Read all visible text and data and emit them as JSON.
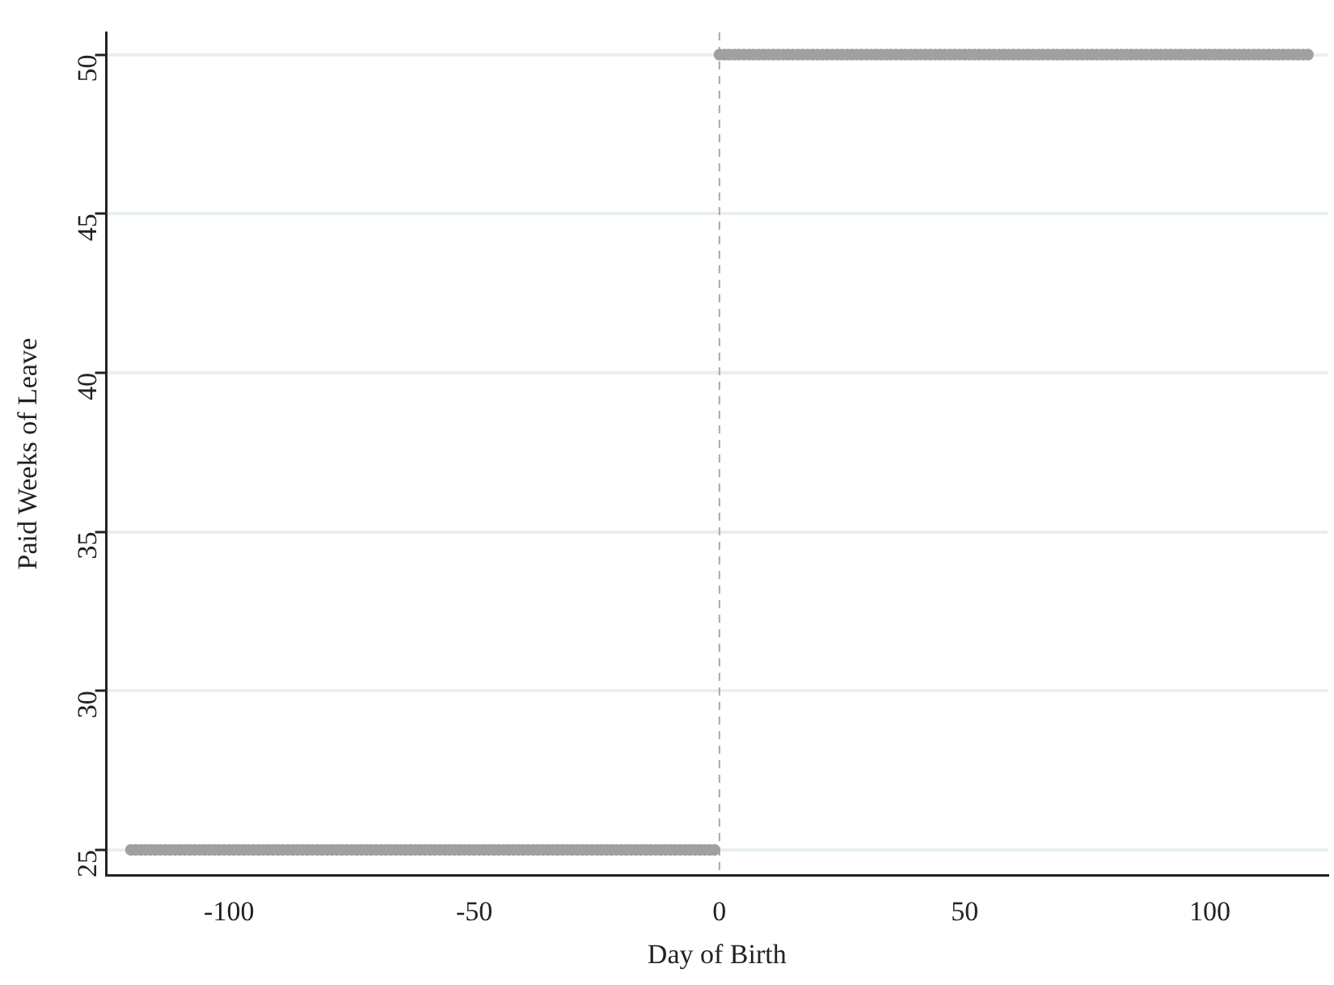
{
  "chart_data": {
    "type": "scatter",
    "xlabel": "Day of Birth",
    "ylabel": "Paid Weeks of Leave",
    "xlim": [
      -125,
      124
    ],
    "xticks": [
      -100,
      -50,
      0,
      50,
      100
    ],
    "ylim": [
      24.2,
      50.7
    ],
    "yticks": [
      25,
      30,
      35,
      40,
      45,
      50
    ],
    "grid": "y",
    "marker": "circle",
    "series": [
      {
        "color": "#a0a0a0",
        "x": [
          -120,
          -119,
          -118,
          -117,
          -116,
          -115,
          -114,
          -113,
          -112,
          -111,
          -110,
          -109,
          -108,
          -107,
          -106,
          -105,
          -104,
          -103,
          -102,
          -101,
          -100,
          -99,
          -98,
          -97,
          -96,
          -95,
          -94,
          -93,
          -92,
          -91,
          -90,
          -89,
          -88,
          -87,
          -86,
          -85,
          -84,
          -83,
          -82,
          -81,
          -80,
          -79,
          -78,
          -77,
          -76,
          -75,
          -74,
          -73,
          -72,
          -71,
          -70,
          -69,
          -68,
          -67,
          -66,
          -65,
          -64,
          -63,
          -62,
          -61,
          -60,
          -59,
          -58,
          -57,
          -56,
          -55,
          -54,
          -53,
          -52,
          -51,
          -50,
          -49,
          -48,
          -47,
          -46,
          -45,
          -44,
          -43,
          -42,
          -41,
          -40,
          -39,
          -38,
          -37,
          -36,
          -35,
          -34,
          -33,
          -32,
          -31,
          -30,
          -29,
          -28,
          -27,
          -26,
          -25,
          -24,
          -23,
          -22,
          -21,
          -20,
          -19,
          -18,
          -17,
          -16,
          -15,
          -14,
          -13,
          -12,
          -11,
          -10,
          -9,
          -8,
          -7,
          -6,
          -5,
          -4,
          -3,
          -2,
          -1
        ],
        "values": [
          25,
          25,
          25,
          25,
          25,
          25,
          25,
          25,
          25,
          25,
          25,
          25,
          25,
          25,
          25,
          25,
          25,
          25,
          25,
          25,
          25,
          25,
          25,
          25,
          25,
          25,
          25,
          25,
          25,
          25,
          25,
          25,
          25,
          25,
          25,
          25,
          25,
          25,
          25,
          25,
          25,
          25,
          25,
          25,
          25,
          25,
          25,
          25,
          25,
          25,
          25,
          25,
          25,
          25,
          25,
          25,
          25,
          25,
          25,
          25,
          25,
          25,
          25,
          25,
          25,
          25,
          25,
          25,
          25,
          25,
          25,
          25,
          25,
          25,
          25,
          25,
          25,
          25,
          25,
          25,
          25,
          25,
          25,
          25,
          25,
          25,
          25,
          25,
          25,
          25,
          25,
          25,
          25,
          25,
          25,
          25,
          25,
          25,
          25,
          25,
          25,
          25,
          25,
          25,
          25,
          25,
          25,
          25,
          25,
          25,
          25,
          25,
          25,
          25,
          25,
          25,
          25,
          25,
          25,
          25
        ]
      },
      {
        "color": "#a0a0a0",
        "x": [
          0,
          1,
          2,
          3,
          4,
          5,
          6,
          7,
          8,
          9,
          10,
          11,
          12,
          13,
          14,
          15,
          16,
          17,
          18,
          19,
          20,
          21,
          22,
          23,
          24,
          25,
          26,
          27,
          28,
          29,
          30,
          31,
          32,
          33,
          34,
          35,
          36,
          37,
          38,
          39,
          40,
          41,
          42,
          43,
          44,
          45,
          46,
          47,
          48,
          49,
          50,
          51,
          52,
          53,
          54,
          55,
          56,
          57,
          58,
          59,
          60,
          61,
          62,
          63,
          64,
          65,
          66,
          67,
          68,
          69,
          70,
          71,
          72,
          73,
          74,
          75,
          76,
          77,
          78,
          79,
          80,
          81,
          82,
          83,
          84,
          85,
          86,
          87,
          88,
          89,
          90,
          91,
          92,
          93,
          94,
          95,
          96,
          97,
          98,
          99,
          100,
          101,
          102,
          103,
          104,
          105,
          106,
          107,
          108,
          109,
          110,
          111,
          112,
          113,
          114,
          115,
          116,
          117,
          118,
          119,
          120
        ],
        "values": [
          50,
          50,
          50,
          50,
          50,
          50,
          50,
          50,
          50,
          50,
          50,
          50,
          50,
          50,
          50,
          50,
          50,
          50,
          50,
          50,
          50,
          50,
          50,
          50,
          50,
          50,
          50,
          50,
          50,
          50,
          50,
          50,
          50,
          50,
          50,
          50,
          50,
          50,
          50,
          50,
          50,
          50,
          50,
          50,
          50,
          50,
          50,
          50,
          50,
          50,
          50,
          50,
          50,
          50,
          50,
          50,
          50,
          50,
          50,
          50,
          50,
          50,
          50,
          50,
          50,
          50,
          50,
          50,
          50,
          50,
          50,
          50,
          50,
          50,
          50,
          50,
          50,
          50,
          50,
          50,
          50,
          50,
          50,
          50,
          50,
          50,
          50,
          50,
          50,
          50,
          50,
          50,
          50,
          50,
          50,
          50,
          50,
          50,
          50,
          50,
          50,
          50,
          50,
          50,
          50,
          50,
          50,
          50,
          50,
          50,
          50,
          50,
          50,
          50,
          50,
          50,
          50,
          50,
          50,
          50,
          50
        ]
      }
    ],
    "ref_lines": [
      {
        "axis": "x",
        "value": 0,
        "color": "#a8a8a8",
        "line_style": "dashed"
      }
    ]
  }
}
